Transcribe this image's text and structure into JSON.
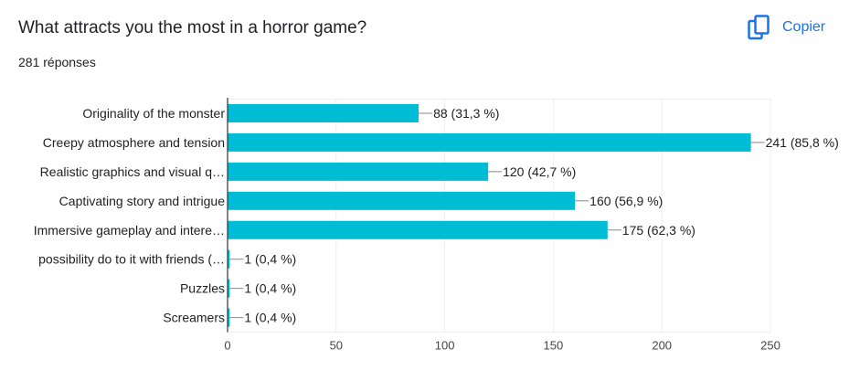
{
  "header": {
    "title": "What attracts you the most in a horror game?",
    "responses": "281 réponses",
    "copy_label": "Copier"
  },
  "colors": {
    "bar": "#00bcd4",
    "accent": "#1a73e8",
    "grid": "#eeeeee",
    "axis": "#333333"
  },
  "icons": {
    "copy": "copy-icon"
  },
  "chart_data": {
    "type": "bar",
    "orientation": "horizontal",
    "title": "What attracts you the most in a horror game?",
    "categories": [
      "Originality of the monster",
      "Creepy atmosphere and tension",
      "Realistic graphics and visual q…",
      "Captivating story and intrigue",
      "Immersive gameplay and intere…",
      "possibility do to it with friends (…",
      "Puzzles",
      "Screamers"
    ],
    "values": [
      88,
      241,
      120,
      160,
      175,
      1,
      1,
      1
    ],
    "value_labels": [
      "88 (31,3 %)",
      "241 (85,8 %)",
      "120 (42,7 %)",
      "160 (56,9 %)",
      "175 (62,3 %)",
      "1 (0,4 %)",
      "1 (0,4 %)",
      "1 (0,4 %)"
    ],
    "xlim": [
      0,
      250
    ],
    "xticks": [
      0,
      50,
      100,
      150,
      200,
      250
    ],
    "grid": true,
    "xlabel": "",
    "ylabel": ""
  }
}
